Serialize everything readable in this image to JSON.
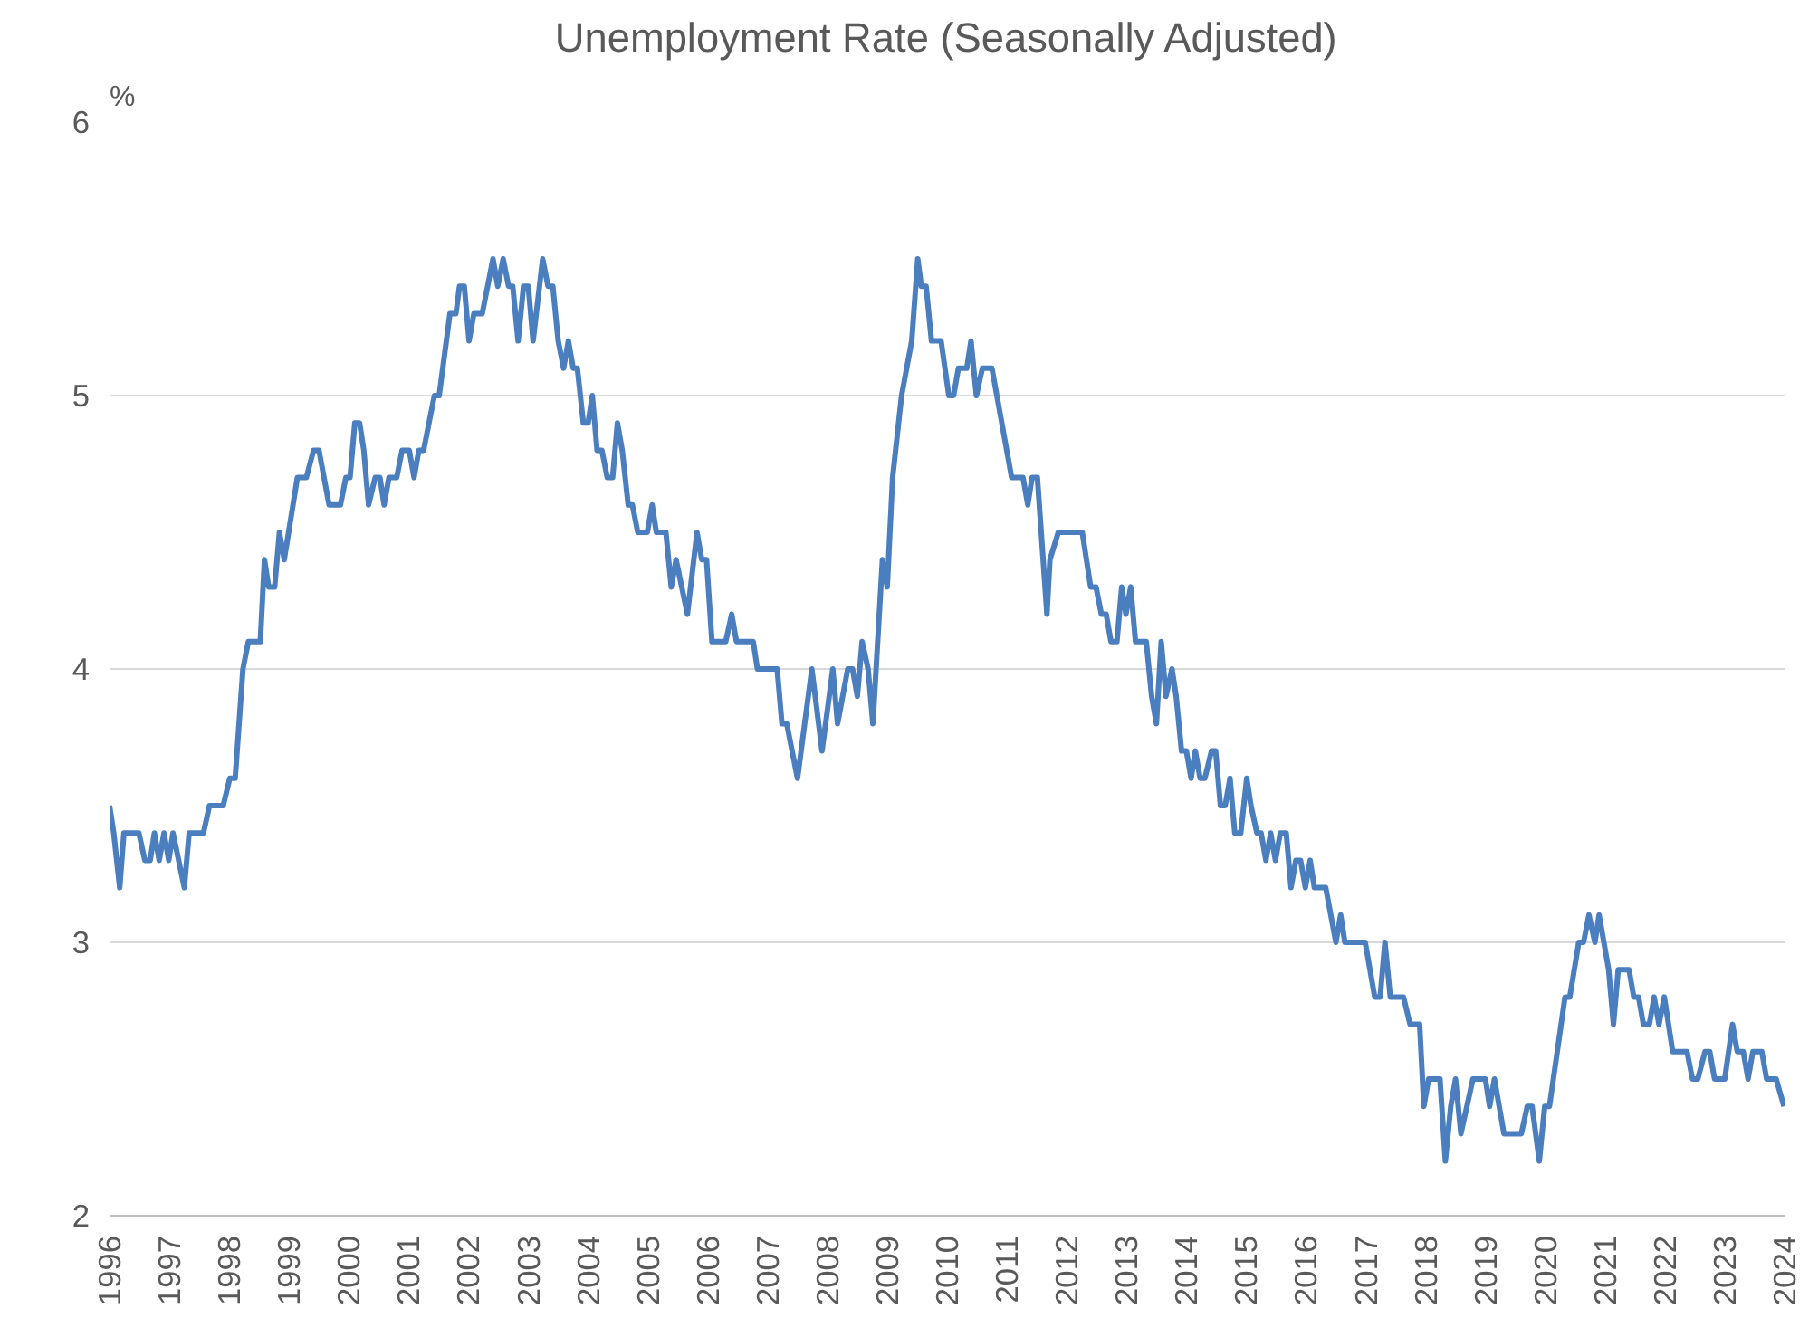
{
  "chart_data": {
    "type": "line",
    "title": "Unemployment Rate (Seasonally Adjusted)",
    "ylabel": "%",
    "x": [
      1996.0,
      1996.07,
      1996.17,
      1996.24,
      1996.49,
      1996.59,
      1996.68,
      1996.75,
      1996.83,
      1996.91,
      1996.99,
      1997.06,
      1997.25,
      1997.33,
      1997.57,
      1997.67,
      1997.9,
      1998.01,
      1998.1,
      1998.23,
      1998.32,
      1998.52,
      1998.59,
      1998.66,
      1998.76,
      1998.84,
      1998.92,
      1999.14,
      1999.29,
      1999.41,
      1999.5,
      1999.67,
      1999.86,
      1999.95,
      2000.02,
      2000.1,
      2000.18,
      2000.25,
      2000.33,
      2000.44,
      2000.52,
      2000.59,
      2000.67,
      2000.8,
      2000.89,
      2001.01,
      2001.09,
      2001.17,
      2001.25,
      2001.43,
      2001.51,
      2001.69,
      2001.79,
      2001.85,
      2001.93,
      2002.01,
      2002.09,
      2002.23,
      2002.41,
      2002.49,
      2002.58,
      2002.67,
      2002.74,
      2002.83,
      2002.92,
      2003.0,
      2003.08,
      2003.24,
      2003.33,
      2003.41,
      2003.5,
      2003.59,
      2003.67,
      2003.75,
      2003.82,
      2003.92,
      2004.0,
      2004.07,
      2004.15,
      2004.23,
      2004.32,
      2004.41,
      2004.49,
      2004.57,
      2004.67,
      2004.74,
      2004.83,
      2004.99,
      2005.07,
      2005.14,
      2005.3,
      2005.39,
      2005.47,
      2005.66,
      2005.82,
      2005.9,
      2005.98,
      2006.07,
      2006.3,
      2006.4,
      2006.48,
      2006.76,
      2006.83,
      2007.16,
      2007.24,
      2007.32,
      2007.5,
      2007.74,
      2007.91,
      2008.09,
      2008.17,
      2008.34,
      2008.42,
      2008.5,
      2008.58,
      2008.68,
      2008.76,
      2008.92,
      2009.0,
      2009.09,
      2009.24,
      2009.41,
      2009.51,
      2009.57,
      2009.65,
      2009.74,
      2009.9,
      2010.03,
      2010.11,
      2010.19,
      2010.33,
      2010.4,
      2010.49,
      2010.59,
      2010.75,
      2011.08,
      2011.27,
      2011.35,
      2011.42,
      2011.51,
      2011.67,
      2011.72,
      2011.86,
      2012.26,
      2012.4,
      2012.49,
      2012.58,
      2012.66,
      2012.74,
      2012.84,
      2012.92,
      2012.99,
      2013.07,
      2013.15,
      2013.33,
      2013.42,
      2013.5,
      2013.58,
      2013.66,
      2013.76,
      2013.83,
      2013.92,
      2014.0,
      2014.08,
      2014.15,
      2014.23,
      2014.31,
      2014.42,
      2014.49,
      2014.57,
      2014.65,
      2014.73,
      2014.81,
      2014.91,
      2015.01,
      2015.08,
      2015.18,
      2015.25,
      2015.33,
      2015.41,
      2015.49,
      2015.57,
      2015.67,
      2015.75,
      2015.83,
      2015.91,
      2015.99,
      2016.07,
      2016.14,
      2016.33,
      2016.5,
      2016.58,
      2016.65,
      2016.99,
      2017.15,
      2017.24,
      2017.32,
      2017.41,
      2017.63,
      2017.74,
      2017.9,
      2017.97,
      2018.05,
      2018.24,
      2018.33,
      2018.42,
      2018.5,
      2018.59,
      2018.79,
      2019.0,
      2019.07,
      2019.15,
      2019.31,
      2019.6,
      2019.7,
      2019.78,
      2019.9,
      2019.99,
      2020.07,
      2020.2,
      2020.33,
      2020.41,
      2020.56,
      2020.64,
      2020.73,
      2020.83,
      2020.9,
      2021.06,
      2021.14,
      2021.22,
      2021.4,
      2021.48,
      2021.56,
      2021.64,
      2021.74,
      2021.82,
      2021.9,
      2021.99,
      2022.13,
      2022.37,
      2022.46,
      2022.55,
      2022.67,
      2022.75,
      2022.83,
      2023.0,
      2023.13,
      2023.21,
      2023.31,
      2023.39,
      2023.47,
      2023.62,
      2023.7,
      2023.86,
      2023.99
    ],
    "series": [
      {
        "color": "#4a7ebf",
        "values": [
          3.5,
          3.4,
          3.2,
          3.4,
          3.4,
          3.3,
          3.3,
          3.4,
          3.3,
          3.4,
          3.3,
          3.4,
          3.2,
          3.4,
          3.4,
          3.5,
          3.5,
          3.6,
          3.6,
          4.0,
          4.1,
          4.1,
          4.4,
          4.3,
          4.3,
          4.5,
          4.4,
          4.7,
          4.7,
          4.8,
          4.8,
          4.6,
          4.6,
          4.7,
          4.7,
          4.9,
          4.9,
          4.8,
          4.6,
          4.7,
          4.7,
          4.6,
          4.7,
          4.7,
          4.8,
          4.8,
          4.7,
          4.8,
          4.8,
          5.0,
          5.0,
          5.3,
          5.3,
          5.4,
          5.4,
          5.2,
          5.3,
          5.3,
          5.5,
          5.4,
          5.5,
          5.4,
          5.4,
          5.2,
          5.4,
          5.4,
          5.2,
          5.5,
          5.4,
          5.4,
          5.2,
          5.1,
          5.2,
          5.1,
          5.1,
          4.9,
          4.9,
          5.0,
          4.8,
          4.8,
          4.7,
          4.7,
          4.9,
          4.8,
          4.6,
          4.6,
          4.5,
          4.5,
          4.6,
          4.5,
          4.5,
          4.3,
          4.4,
          4.2,
          4.5,
          4.4,
          4.4,
          4.1,
          4.1,
          4.2,
          4.1,
          4.1,
          4.0,
          4.0,
          3.8,
          3.8,
          3.6,
          4.0,
          3.7,
          4.0,
          3.8,
          4.0,
          4.0,
          3.9,
          4.1,
          4.0,
          3.8,
          4.4,
          4.3,
          4.7,
          5.0,
          5.2,
          5.5,
          5.4,
          5.4,
          5.2,
          5.2,
          5.0,
          5.0,
          5.1,
          5.1,
          5.2,
          5.0,
          5.1,
          5.1,
          4.7,
          4.7,
          4.6,
          4.7,
          4.7,
          4.2,
          4.4,
          4.5,
          4.5,
          4.3,
          4.3,
          4.2,
          4.2,
          4.1,
          4.1,
          4.3,
          4.2,
          4.3,
          4.1,
          4.1,
          3.9,
          3.8,
          4.1,
          3.9,
          4.0,
          3.9,
          3.7,
          3.7,
          3.6,
          3.7,
          3.6,
          3.6,
          3.7,
          3.7,
          3.5,
          3.5,
          3.6,
          3.4,
          3.4,
          3.6,
          3.5,
          3.4,
          3.4,
          3.3,
          3.4,
          3.3,
          3.4,
          3.4,
          3.2,
          3.3,
          3.3,
          3.2,
          3.3,
          3.2,
          3.2,
          3.0,
          3.1,
          3.0,
          3.0,
          2.8,
          2.8,
          3.0,
          2.8,
          2.8,
          2.7,
          2.7,
          2.4,
          2.5,
          2.5,
          2.2,
          2.4,
          2.5,
          2.3,
          2.5,
          2.5,
          2.4,
          2.5,
          2.3,
          2.3,
          2.4,
          2.4,
          2.2,
          2.4,
          2.4,
          2.6,
          2.8,
          2.8,
          3.0,
          3.0,
          3.1,
          3.0,
          3.1,
          2.9,
          2.7,
          2.9,
          2.9,
          2.8,
          2.8,
          2.7,
          2.7,
          2.8,
          2.7,
          2.8,
          2.6,
          2.6,
          2.5,
          2.5,
          2.6,
          2.6,
          2.5,
          2.5,
          2.7,
          2.6,
          2.6,
          2.5,
          2.6,
          2.6,
          2.5,
          2.5,
          2.4
        ]
      }
    ],
    "xlim": [
      1996,
      2024
    ],
    "ylim": [
      2,
      6
    ],
    "xticks": [
      1996,
      1997,
      1998,
      1999,
      2000,
      2001,
      2002,
      2003,
      2004,
      2005,
      2006,
      2007,
      2008,
      2009,
      2010,
      2011,
      2012,
      2013,
      2014,
      2015,
      2016,
      2017,
      2018,
      2019,
      2020,
      2021,
      2022,
      2023,
      2024
    ],
    "yticks": [
      2,
      3,
      4,
      5,
      6
    ],
    "grid": "y",
    "line_style": "solid"
  }
}
